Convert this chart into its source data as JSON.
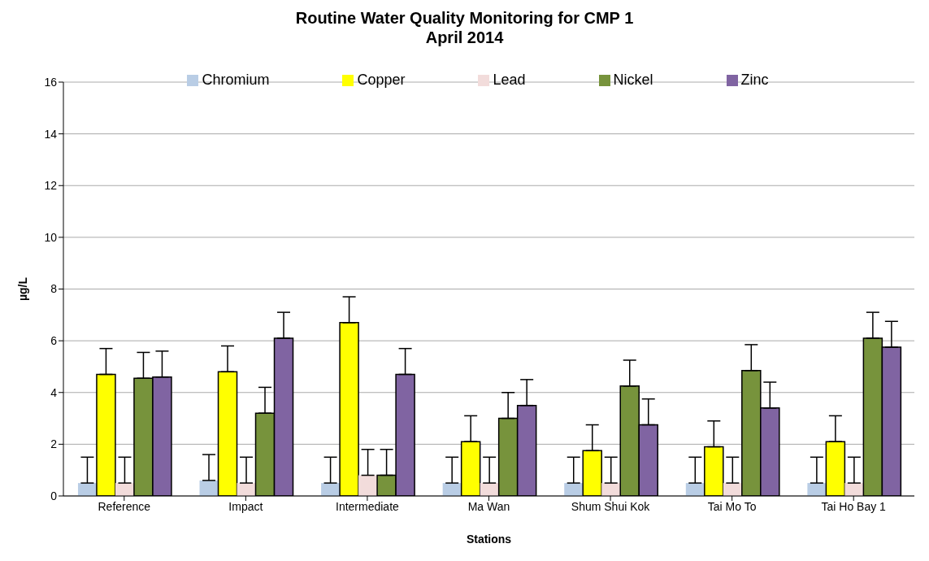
{
  "chart_data": {
    "type": "bar",
    "title": "Routine Water Quality Monitoring for CMP 1\nApril 2014",
    "xlabel": "Stations",
    "ylabel": "µg/L",
    "categories": [
      "Reference",
      "Impact",
      "Intermediate",
      "Ma Wan",
      "Shum Shui Kok",
      "Tai Mo To",
      "Tai Ho Bay 1"
    ],
    "series": [
      {
        "name": "Chromium",
        "color": "#b9cde5",
        "values": [
          0.5,
          0.6,
          0.5,
          0.5,
          0.5,
          0.5,
          0.5
        ],
        "errors": [
          [
            0.5,
            1.5
          ],
          [
            0.6,
            1.6
          ],
          [
            0.5,
            1.5
          ],
          [
            0.5,
            1.5
          ],
          [
            0.5,
            1.5
          ],
          [
            0.5,
            1.5
          ],
          [
            0.5,
            1.5
          ]
        ]
      },
      {
        "name": "Copper",
        "color": "#ffff00",
        "values": [
          4.7,
          4.8,
          6.7,
          2.1,
          1.75,
          1.9,
          2.1
        ],
        "errors": [
          [
            4.7,
            5.7
          ],
          [
            4.8,
            5.8
          ],
          [
            6.7,
            7.7
          ],
          [
            2.1,
            3.1
          ],
          [
            1.75,
            2.75
          ],
          [
            1.9,
            2.9
          ],
          [
            2.1,
            3.1
          ]
        ]
      },
      {
        "name": "Lead",
        "color": "#f2dcdb",
        "values": [
          0.5,
          0.5,
          0.8,
          0.5,
          0.5,
          0.5,
          0.5
        ],
        "errors": [
          [
            0.5,
            1.5
          ],
          [
            0.5,
            1.5
          ],
          [
            0.8,
            1.8
          ],
          [
            0.5,
            1.5
          ],
          [
            0.5,
            1.5
          ],
          [
            0.5,
            1.5
          ],
          [
            0.5,
            1.5
          ]
        ]
      },
      {
        "name": "Nickel",
        "color": "#77933c",
        "values": [
          4.55,
          3.2,
          0.8,
          3.0,
          4.25,
          4.85,
          6.1
        ],
        "errors": [
          [
            4.55,
            5.55
          ],
          [
            3.2,
            4.2
          ],
          [
            0.8,
            1.8
          ],
          [
            3.0,
            4.0
          ],
          [
            4.25,
            5.25
          ],
          [
            4.85,
            5.85
          ],
          [
            6.1,
            7.1
          ]
        ]
      },
      {
        "name": "Zinc",
        "color": "#8064a2",
        "values": [
          4.6,
          6.1,
          4.7,
          3.5,
          2.75,
          3.4,
          5.75
        ],
        "errors": [
          [
            4.6,
            5.6
          ],
          [
            6.1,
            7.1
          ],
          [
            4.7,
            5.7
          ],
          [
            3.5,
            4.5
          ],
          [
            2.75,
            3.75
          ],
          [
            3.4,
            4.4
          ],
          [
            5.75,
            6.75
          ]
        ]
      }
    ],
    "ylim": [
      0,
      16
    ],
    "yticks": [
      0,
      2,
      4,
      6,
      8,
      10,
      12,
      14,
      16
    ],
    "grid": "y",
    "legend": "top"
  }
}
